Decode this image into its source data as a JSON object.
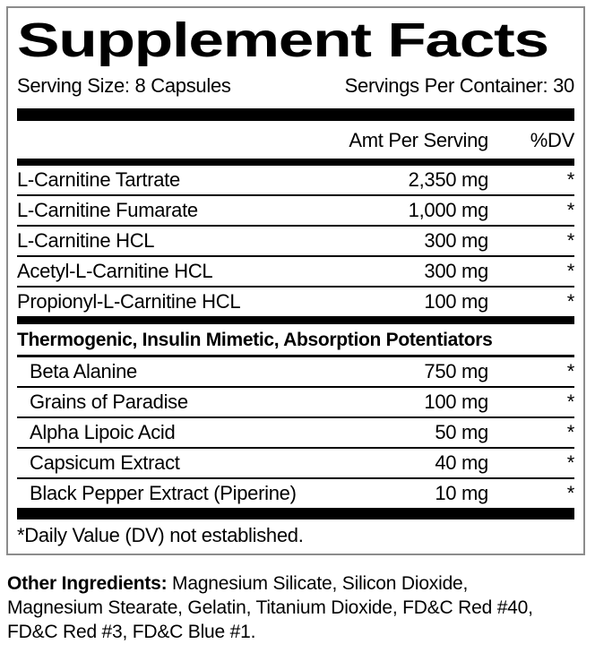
{
  "label": {
    "title": "Supplement Facts",
    "serving_size": "Serving Size: 8 Capsules",
    "servings_per_container": "Servings Per Container: 30",
    "columns": {
      "amount_header": "Amt Per Serving",
      "dv_header": "%DV"
    },
    "main_rows": [
      {
        "name": "L-Carnitine Tartrate",
        "amount": "2,350 mg",
        "dv": "*"
      },
      {
        "name": "L-Carnitine Fumarate",
        "amount": "1,000 mg",
        "dv": "*"
      },
      {
        "name": "L-Carnitine HCL",
        "amount": "300 mg",
        "dv": "*"
      },
      {
        "name": "Acetyl-L-Carnitine HCL",
        "amount": "300 mg",
        "dv": "*"
      },
      {
        "name": "Propionyl-L-Carnitine HCL",
        "amount": "100 mg",
        "dv": "*"
      }
    ],
    "section": {
      "header": "Thermogenic, Insulin Mimetic, Absorption Potentiators",
      "rows": [
        {
          "name": "Beta Alanine",
          "amount": "750 mg",
          "dv": "*"
        },
        {
          "name": "Grains of Paradise",
          "amount": "100 mg",
          "dv": "*"
        },
        {
          "name": "Alpha Lipoic Acid",
          "amount": "50 mg",
          "dv": "*"
        },
        {
          "name": "Capsicum Extract",
          "amount": "40 mg",
          "dv": "*"
        },
        {
          "name": "Black Pepper Extract (Piperine)",
          "amount": "10 mg",
          "dv": "*"
        }
      ]
    },
    "footnote": "*Daily Value (DV) not established.",
    "other_ingredients": {
      "label": "Other Ingredients:",
      "line1": " Magnesium Silicate, Silicon Dioxide,",
      "line2": "Magnesium Stearate, Gelatin, Titanium Dioxide, FD&C Red #40,",
      "line3": "FD&C Red #3, FD&C Blue #1."
    },
    "colors": {
      "text": "#000000",
      "bar": "#000000",
      "border": "#8c8c8c",
      "background": "#ffffff"
    }
  }
}
